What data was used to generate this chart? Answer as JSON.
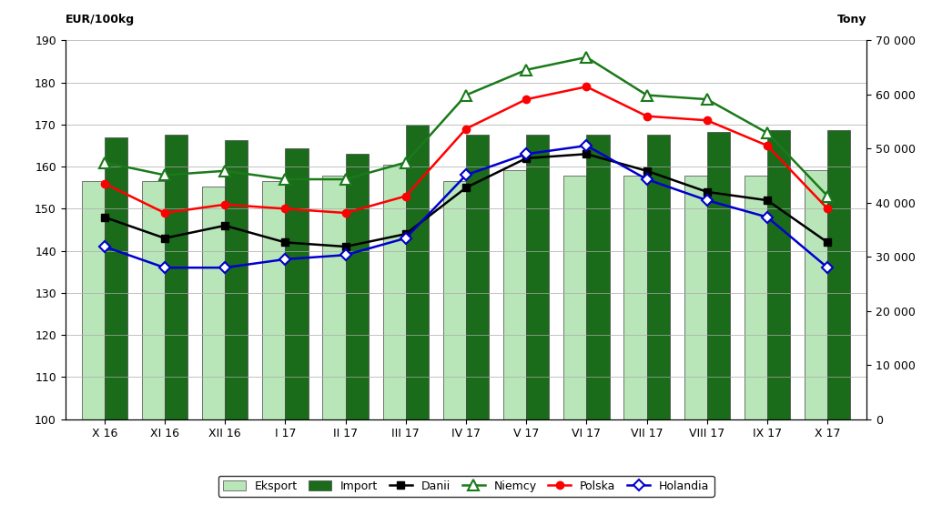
{
  "categories": [
    "X 16",
    "XI 16",
    "XII 16",
    "I 17",
    "II 17",
    "III 17",
    "IV 17",
    "V 17",
    "VI 17",
    "VII 17",
    "VIII 17",
    "IX 17",
    "X 17"
  ],
  "eksport_tony": [
    44000,
    44000,
    43000,
    44000,
    45000,
    47000,
    44000,
    46000,
    45000,
    45000,
    45000,
    45000,
    46000
  ],
  "import_tony": [
    52000,
    52500,
    51500,
    50000,
    49000,
    54500,
    52500,
    52500,
    52500,
    52500,
    53000,
    53500,
    53500
  ],
  "danii": [
    148,
    143,
    146,
    142,
    141,
    144,
    155,
    162,
    163,
    159,
    154,
    152,
    142
  ],
  "niemcy": [
    161,
    158,
    159,
    157,
    157,
    161,
    177,
    183,
    186,
    177,
    176,
    168,
    153
  ],
  "polska": [
    156,
    149,
    151,
    150,
    149,
    153,
    169,
    176,
    179,
    172,
    171,
    165,
    150
  ],
  "holandia": [
    141,
    136,
    136,
    138,
    139,
    143,
    158,
    163,
    165,
    157,
    152,
    148,
    136
  ],
  "eksport_color": "#b8e6b8",
  "import_color": "#1a6b1a",
  "danii_color": "#000000",
  "niemcy_color": "#1a7a1a",
  "polska_color": "#FF0000",
  "holandia_color": "#0000CD",
  "ylabel_left": "EUR/100kg",
  "ylabel_right": "Tony",
  "ylim_left": [
    100,
    190
  ],
  "ylim_right": [
    0,
    70000
  ],
  "yticks_left": [
    100,
    110,
    120,
    130,
    140,
    150,
    160,
    170,
    180,
    190
  ],
  "yticks_right": [
    0,
    10000,
    20000,
    30000,
    40000,
    50000,
    60000,
    70000
  ],
  "bar_width": 0.38
}
